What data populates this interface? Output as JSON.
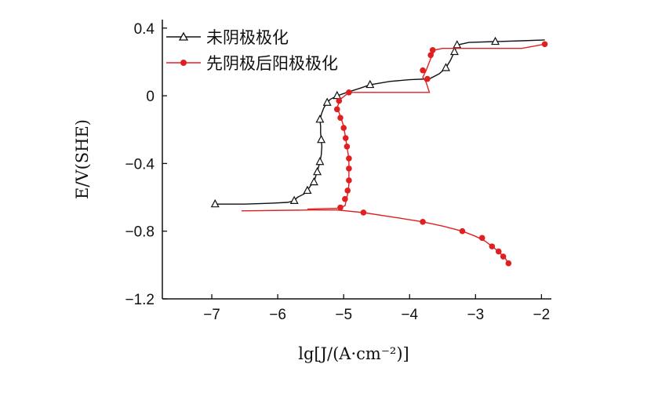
{
  "chart_data": {
    "type": "line",
    "title": "",
    "xlabel": "lg[J/(A·cm⁻²)]",
    "ylabel": "E/V(SHE)",
    "xlim": [
      -7.75,
      -1.85
    ],
    "ylim": [
      -1.2,
      0.45
    ],
    "x_ticks": [
      -7,
      -6,
      -5,
      -4,
      -3,
      -2
    ],
    "x_tick_labels": [
      "−7",
      "−6",
      "−5",
      "−4",
      "−3",
      "−2"
    ],
    "y_ticks": [
      0.4,
      0,
      -0.4,
      -0.8,
      -1.2
    ],
    "y_tick_labels": [
      "0.4",
      "0",
      "−0.4",
      "−0.8",
      "−1.2"
    ],
    "legend_position": "top-left",
    "grid": false,
    "series": [
      {
        "name": "未阴极极化",
        "color": "#111111",
        "marker": "triangle-open",
        "points": [
          [
            -6.95,
            -0.64
          ],
          [
            -6.5,
            -0.64
          ],
          [
            -6.1,
            -0.635
          ],
          [
            -5.85,
            -0.63
          ],
          [
            -5.75,
            -0.62
          ],
          [
            -5.7,
            -0.6
          ],
          [
            -5.6,
            -0.58
          ],
          [
            -5.55,
            -0.56
          ],
          [
            -5.5,
            -0.53
          ],
          [
            -5.45,
            -0.51
          ],
          [
            -5.42,
            -0.47
          ],
          [
            -5.4,
            -0.45
          ],
          [
            -5.38,
            -0.42
          ],
          [
            -5.36,
            -0.39
          ],
          [
            -5.34,
            -0.35
          ],
          [
            -5.33,
            -0.3
          ],
          [
            -5.34,
            -0.26
          ],
          [
            -5.35,
            -0.22
          ],
          [
            -5.35,
            -0.18
          ],
          [
            -5.36,
            -0.14
          ],
          [
            -5.33,
            -0.1
          ],
          [
            -5.3,
            -0.07
          ],
          [
            -5.25,
            -0.04
          ],
          [
            -5.2,
            -0.02
          ],
          [
            -5.1,
            0.0
          ],
          [
            -4.95,
            0.02
          ],
          [
            -4.75,
            0.045
          ],
          [
            -4.6,
            0.065
          ],
          [
            -4.3,
            0.085
          ],
          [
            -4.0,
            0.095
          ],
          [
            -3.7,
            0.1
          ],
          [
            -3.55,
            0.13
          ],
          [
            -3.45,
            0.165
          ],
          [
            -3.38,
            0.21
          ],
          [
            -3.32,
            0.26
          ],
          [
            -3.28,
            0.3
          ],
          [
            -3.1,
            0.315
          ],
          [
            -2.7,
            0.32
          ],
          [
            -2.3,
            0.325
          ],
          [
            -1.95,
            0.33
          ]
        ],
        "marker_points": [
          [
            -6.95,
            -0.64
          ],
          [
            -5.75,
            -0.62
          ],
          [
            -5.55,
            -0.56
          ],
          [
            -5.45,
            -0.51
          ],
          [
            -5.4,
            -0.45
          ],
          [
            -5.36,
            -0.39
          ],
          [
            -5.34,
            -0.26
          ],
          [
            -5.36,
            -0.14
          ],
          [
            -5.25,
            -0.04
          ],
          [
            -5.1,
            0.0
          ],
          [
            -4.6,
            0.065
          ],
          [
            -3.45,
            0.165
          ],
          [
            -3.32,
            0.26
          ],
          [
            -3.28,
            0.3
          ],
          [
            -2.7,
            0.32
          ]
        ]
      },
      {
        "name": "先阴极后阳极极化",
        "color": "#e02020",
        "marker": "circle-filled",
        "cathodic_points": [
          [
            -6.55,
            -0.68
          ],
          [
            -5.5,
            -0.675
          ],
          [
            -5.1,
            -0.675
          ],
          [
            -4.7,
            -0.69
          ],
          [
            -4.2,
            -0.72
          ],
          [
            -3.8,
            -0.745
          ],
          [
            -3.5,
            -0.77
          ],
          [
            -3.2,
            -0.8
          ],
          [
            -3.0,
            -0.83
          ],
          [
            -2.85,
            -0.86
          ],
          [
            -2.75,
            -0.89
          ],
          [
            -2.65,
            -0.92
          ],
          [
            -2.55,
            -0.96
          ],
          [
            -2.5,
            -0.99
          ]
        ],
        "cathodic_marker_points": [
          [
            -4.7,
            -0.69
          ],
          [
            -3.8,
            -0.745
          ],
          [
            -3.2,
            -0.8
          ],
          [
            -2.9,
            -0.84
          ],
          [
            -2.75,
            -0.89
          ],
          [
            -2.65,
            -0.92
          ],
          [
            -2.58,
            -0.95
          ],
          [
            -2.5,
            -0.99
          ]
        ],
        "anodic_points": [
          [
            -5.55,
            -0.67
          ],
          [
            -5.1,
            -0.665
          ],
          [
            -4.98,
            -0.65
          ],
          [
            -4.95,
            -0.6
          ],
          [
            -4.93,
            -0.56
          ],
          [
            -4.92,
            -0.52
          ],
          [
            -4.92,
            -0.46
          ],
          [
            -4.92,
            -0.4
          ],
          [
            -4.93,
            -0.35
          ],
          [
            -4.95,
            -0.3
          ],
          [
            -4.97,
            -0.25
          ],
          [
            -5.0,
            -0.18
          ],
          [
            -5.05,
            -0.12
          ],
          [
            -5.1,
            -0.07
          ],
          [
            -5.05,
            -0.02
          ],
          [
            -4.95,
            0.01
          ],
          [
            -4.9,
            0.02
          ],
          [
            -4.6,
            0.02
          ],
          [
            -4.2,
            0.02
          ],
          [
            -3.7,
            0.02
          ],
          [
            -3.75,
            0.08
          ],
          [
            -3.8,
            0.11
          ],
          [
            -3.75,
            0.15
          ],
          [
            -3.68,
            0.22
          ],
          [
            -3.62,
            0.27
          ],
          [
            -3.5,
            0.28
          ],
          [
            -2.8,
            0.28
          ],
          [
            -2.3,
            0.28
          ],
          [
            -1.95,
            0.305
          ]
        ],
        "anodic_marker_points": [
          [
            -5.05,
            -0.66
          ],
          [
            -4.98,
            -0.61
          ],
          [
            -4.94,
            -0.56
          ],
          [
            -4.92,
            -0.5
          ],
          [
            -4.92,
            -0.43
          ],
          [
            -4.92,
            -0.37
          ],
          [
            -4.95,
            -0.3
          ],
          [
            -4.97,
            -0.25
          ],
          [
            -5.0,
            -0.19
          ],
          [
            -5.05,
            -0.13
          ],
          [
            -5.1,
            -0.08
          ],
          [
            -5.07,
            -0.03
          ],
          [
            -4.92,
            0.02
          ],
          [
            -3.8,
            0.15
          ],
          [
            -3.73,
            0.1
          ],
          [
            -3.68,
            0.24
          ],
          [
            -3.65,
            0.27
          ],
          [
            -1.95,
            0.305
          ]
        ]
      }
    ]
  }
}
